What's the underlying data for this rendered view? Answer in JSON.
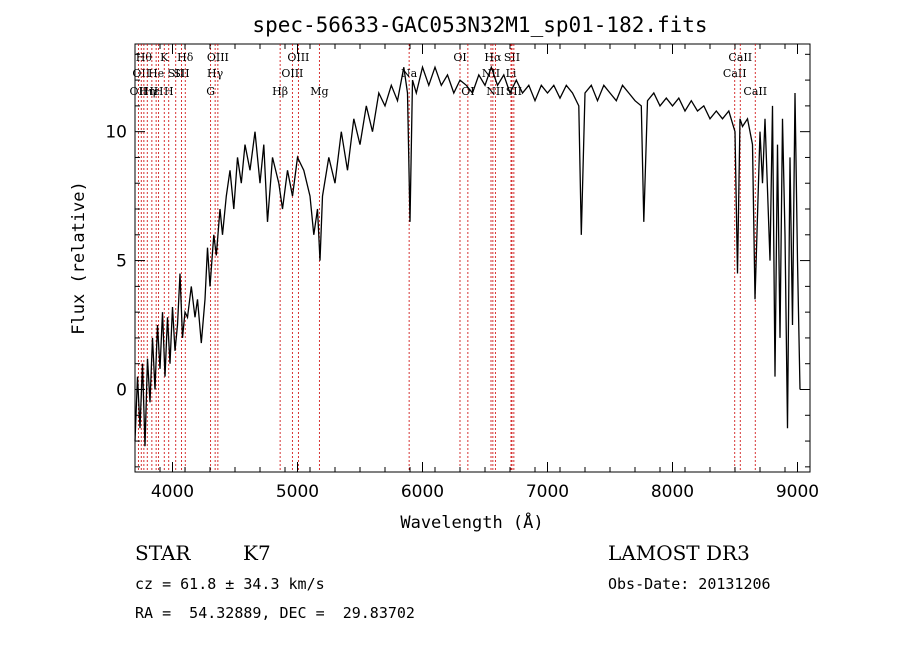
{
  "chart_data": {
    "type": "line",
    "title": "spec-56633-GAC053N32M1_sp01-182.fits",
    "xlabel": "Wavelength (Å)",
    "ylabel": "Flux (relative)",
    "xlim": [
      3700,
      9100
    ],
    "ylim": [
      -3.2,
      13.4
    ],
    "x_ticks": [
      4000,
      5000,
      6000,
      7000,
      8000,
      9000
    ],
    "y_ticks": [
      0,
      5,
      10
    ],
    "series": [
      {
        "line_color": "#000000",
        "points": [
          [
            3700,
            -2.0
          ],
          [
            3720,
            0.5
          ],
          [
            3740,
            -1.5
          ],
          [
            3760,
            1.0
          ],
          [
            3780,
            -2.2
          ],
          [
            3800,
            1.2
          ],
          [
            3820,
            -0.5
          ],
          [
            3840,
            2.0
          ],
          [
            3860,
            0.0
          ],
          [
            3880,
            2.5
          ],
          [
            3900,
            0.8
          ],
          [
            3920,
            3.0
          ],
          [
            3940,
            0.5
          ],
          [
            3960,
            2.8
          ],
          [
            3980,
            1.0
          ],
          [
            4000,
            3.2
          ],
          [
            4020,
            1.5
          ],
          [
            4040,
            2.5
          ],
          [
            4060,
            4.5
          ],
          [
            4080,
            2.0
          ],
          [
            4100,
            3.0
          ],
          [
            4120,
            2.8
          ],
          [
            4150,
            4.0
          ],
          [
            4180,
            2.8
          ],
          [
            4200,
            3.5
          ],
          [
            4230,
            1.8
          ],
          [
            4260,
            3.5
          ],
          [
            4280,
            5.5
          ],
          [
            4300,
            4.0
          ],
          [
            4330,
            6.0
          ],
          [
            4350,
            5.2
          ],
          [
            4380,
            7.0
          ],
          [
            4400,
            6.0
          ],
          [
            4430,
            7.5
          ],
          [
            4460,
            8.5
          ],
          [
            4490,
            7.0
          ],
          [
            4520,
            9.0
          ],
          [
            4550,
            8.0
          ],
          [
            4580,
            9.5
          ],
          [
            4620,
            8.5
          ],
          [
            4660,
            10.0
          ],
          [
            4700,
            8.0
          ],
          [
            4730,
            9.5
          ],
          [
            4760,
            6.5
          ],
          [
            4800,
            9.0
          ],
          [
            4850,
            8.0
          ],
          [
            4880,
            7.0
          ],
          [
            4920,
            8.5
          ],
          [
            4960,
            7.5
          ],
          [
            5000,
            9.0
          ],
          [
            5050,
            8.5
          ],
          [
            5100,
            7.5
          ],
          [
            5130,
            6.0
          ],
          [
            5160,
            7.0
          ],
          [
            5180,
            5.0
          ],
          [
            5200,
            7.5
          ],
          [
            5250,
            9.0
          ],
          [
            5300,
            8.0
          ],
          [
            5350,
            10.0
          ],
          [
            5400,
            8.5
          ],
          [
            5450,
            10.5
          ],
          [
            5500,
            9.5
          ],
          [
            5550,
            11.0
          ],
          [
            5600,
            10.0
          ],
          [
            5650,
            11.5
          ],
          [
            5700,
            11.0
          ],
          [
            5750,
            11.8
          ],
          [
            5800,
            11.2
          ],
          [
            5850,
            12.5
          ],
          [
            5880,
            11.5
          ],
          [
            5900,
            6.5
          ],
          [
            5920,
            12.0
          ],
          [
            5950,
            11.5
          ],
          [
            6000,
            12.5
          ],
          [
            6050,
            11.8
          ],
          [
            6100,
            12.5
          ],
          [
            6150,
            11.8
          ],
          [
            6200,
            12.2
          ],
          [
            6250,
            11.5
          ],
          [
            6300,
            12.0
          ],
          [
            6350,
            11.8
          ],
          [
            6400,
            11.5
          ],
          [
            6450,
            12.2
          ],
          [
            6500,
            11.8
          ],
          [
            6550,
            12.5
          ],
          [
            6600,
            11.8
          ],
          [
            6650,
            12.2
          ],
          [
            6700,
            11.5
          ],
          [
            6750,
            12.0
          ],
          [
            6800,
            11.5
          ],
          [
            6850,
            11.8
          ],
          [
            6900,
            11.2
          ],
          [
            6950,
            11.8
          ],
          [
            7000,
            11.5
          ],
          [
            7050,
            11.8
          ],
          [
            7100,
            11.3
          ],
          [
            7150,
            11.8
          ],
          [
            7200,
            11.5
          ],
          [
            7250,
            11.0
          ],
          [
            7270,
            6.0
          ],
          [
            7300,
            11.5
          ],
          [
            7350,
            11.8
          ],
          [
            7400,
            11.2
          ],
          [
            7450,
            11.8
          ],
          [
            7500,
            11.5
          ],
          [
            7550,
            11.2
          ],
          [
            7600,
            11.8
          ],
          [
            7650,
            11.5
          ],
          [
            7700,
            11.2
          ],
          [
            7750,
            11.0
          ],
          [
            7770,
            6.5
          ],
          [
            7800,
            11.2
          ],
          [
            7850,
            11.5
          ],
          [
            7900,
            11.0
          ],
          [
            7950,
            11.3
          ],
          [
            8000,
            11.0
          ],
          [
            8050,
            11.3
          ],
          [
            8100,
            10.8
          ],
          [
            8150,
            11.2
          ],
          [
            8200,
            10.8
          ],
          [
            8250,
            11.0
          ],
          [
            8300,
            10.5
          ],
          [
            8350,
            10.8
          ],
          [
            8400,
            10.5
          ],
          [
            8450,
            10.8
          ],
          [
            8500,
            10.0
          ],
          [
            8520,
            4.5
          ],
          [
            8540,
            10.5
          ],
          [
            8560,
            10.2
          ],
          [
            8600,
            10.5
          ],
          [
            8640,
            9.5
          ],
          [
            8660,
            3.5
          ],
          [
            8700,
            10.0
          ],
          [
            8720,
            8.0
          ],
          [
            8740,
            10.5
          ],
          [
            8780,
            5.0
          ],
          [
            8800,
            11.0
          ],
          [
            8820,
            0.5
          ],
          [
            8840,
            9.5
          ],
          [
            8860,
            2.0
          ],
          [
            8880,
            10.5
          ],
          [
            8900,
            6.0
          ],
          [
            8920,
            -1.5
          ],
          [
            8940,
            9.0
          ],
          [
            8960,
            2.5
          ],
          [
            8980,
            11.5
          ],
          [
            9000,
            5.0
          ],
          [
            9020,
            0.0
          ]
        ]
      }
    ],
    "line_markers": [
      {
        "wl": 3727,
        "label": "OII",
        "row": 2
      },
      {
        "wl": 3750,
        "label": "OII",
        "row": 1
      },
      {
        "wl": 3771,
        "label": "Hθ",
        "row": 0
      },
      {
        "wl": 3798,
        "label": "Hη",
        "row": 2
      },
      {
        "wl": 3835,
        "label": "Hε",
        "row": 2
      },
      {
        "wl": 3869,
        "label": "He",
        "row": 1
      },
      {
        "wl": 3889,
        "label": "H",
        "row": 2
      },
      {
        "wl": 3934,
        "label": "K",
        "row": 0
      },
      {
        "wl": 3970,
        "label": "H",
        "row": 2
      },
      {
        "wl": 4026,
        "label": "SII",
        "row": 1
      },
      {
        "wl": 4072,
        "label": "SII",
        "row": 1
      },
      {
        "wl": 4102,
        "label": "Hδ",
        "row": 0
      },
      {
        "wl": 4305,
        "label": "G",
        "row": 2
      },
      {
        "wl": 4341,
        "label": "Hγ",
        "row": 1
      },
      {
        "wl": 4363,
        "label": "OIII",
        "row": 0
      },
      {
        "wl": 4861,
        "label": "Hβ",
        "row": 2
      },
      {
        "wl": 4959,
        "label": "OIII",
        "row": 1
      },
      {
        "wl": 5007,
        "label": "OIII",
        "row": 0
      },
      {
        "wl": 5175,
        "label": "Mg",
        "row": 2
      },
      {
        "wl": 5893,
        "label": "Na",
        "row": 1
      },
      {
        "wl": 6300,
        "label": "OI",
        "row": 0
      },
      {
        "wl": 6363,
        "label": "OI",
        "row": 2
      },
      {
        "wl": 6548,
        "label": "NII",
        "row": 1
      },
      {
        "wl": 6563,
        "label": "Hα",
        "row": 0
      },
      {
        "wl": 6583,
        "label": "NII",
        "row": 2
      },
      {
        "wl": 6708,
        "label": "Li",
        "row": 1
      },
      {
        "wl": 6716,
        "label": "SII",
        "row": 0
      },
      {
        "wl": 6731,
        "label": "SII",
        "row": 2
      },
      {
        "wl": 8498,
        "label": "CaII",
        "row": 1
      },
      {
        "wl": 8542,
        "label": "CaII",
        "row": 0
      },
      {
        "wl": 8662,
        "label": "CaII",
        "row": 2
      }
    ],
    "marker_color": "#cc0000",
    "grid": false
  },
  "info": {
    "class_label": "STAR",
    "subclass_label": "K7",
    "survey": "LAMOST DR3",
    "cz_text": "cz = 61.8 ± 34.3 km/s",
    "obs_date_text": "Obs-Date: 20131206",
    "coords_text": "RA =  54.32889, DEC =  29.83702"
  }
}
